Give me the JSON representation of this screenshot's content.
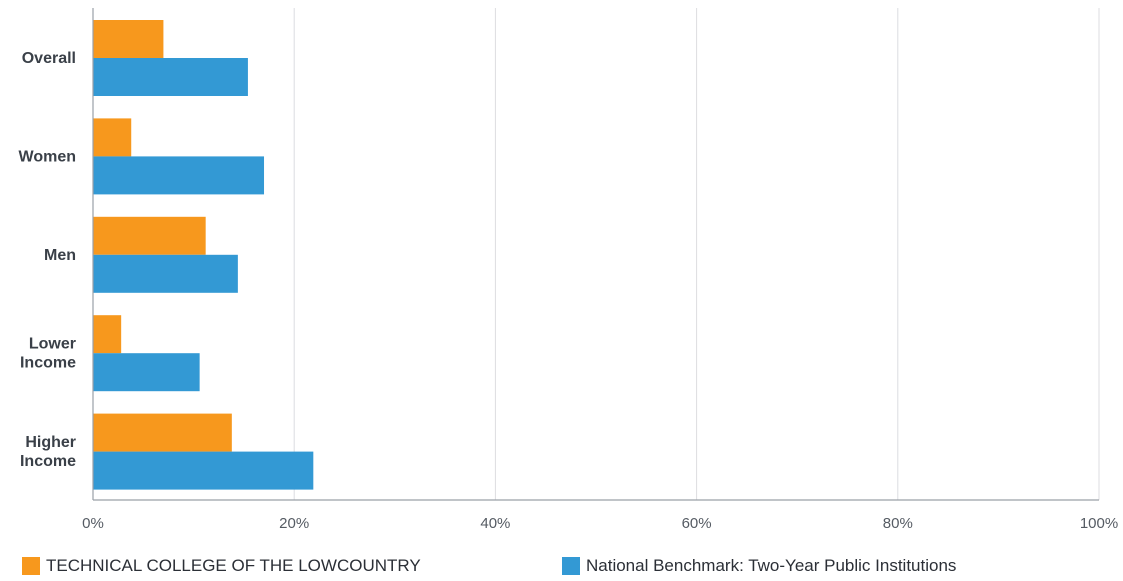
{
  "chart_data": {
    "type": "bar",
    "orientation": "horizontal",
    "categories": [
      "Overall",
      "Women",
      "Men",
      "Lower Income",
      "Higher Income"
    ],
    "series": [
      {
        "name": "TECHNICAL COLLEGE OF THE LOWCOUNTRY",
        "color": "#F7981D",
        "values": [
          7.0,
          3.8,
          11.2,
          2.8,
          13.8
        ]
      },
      {
        "name": "National Benchmark: Two-Year Public Institutions",
        "color": "#3399D4",
        "values": [
          15.4,
          17.0,
          14.4,
          10.6,
          21.9
        ]
      }
    ],
    "x_ticks": [
      "0%",
      "20%",
      "40%",
      "60%",
      "80%",
      "100%"
    ],
    "xlim": [
      0,
      100
    ],
    "grid": true,
    "legend_position": "bottom"
  }
}
